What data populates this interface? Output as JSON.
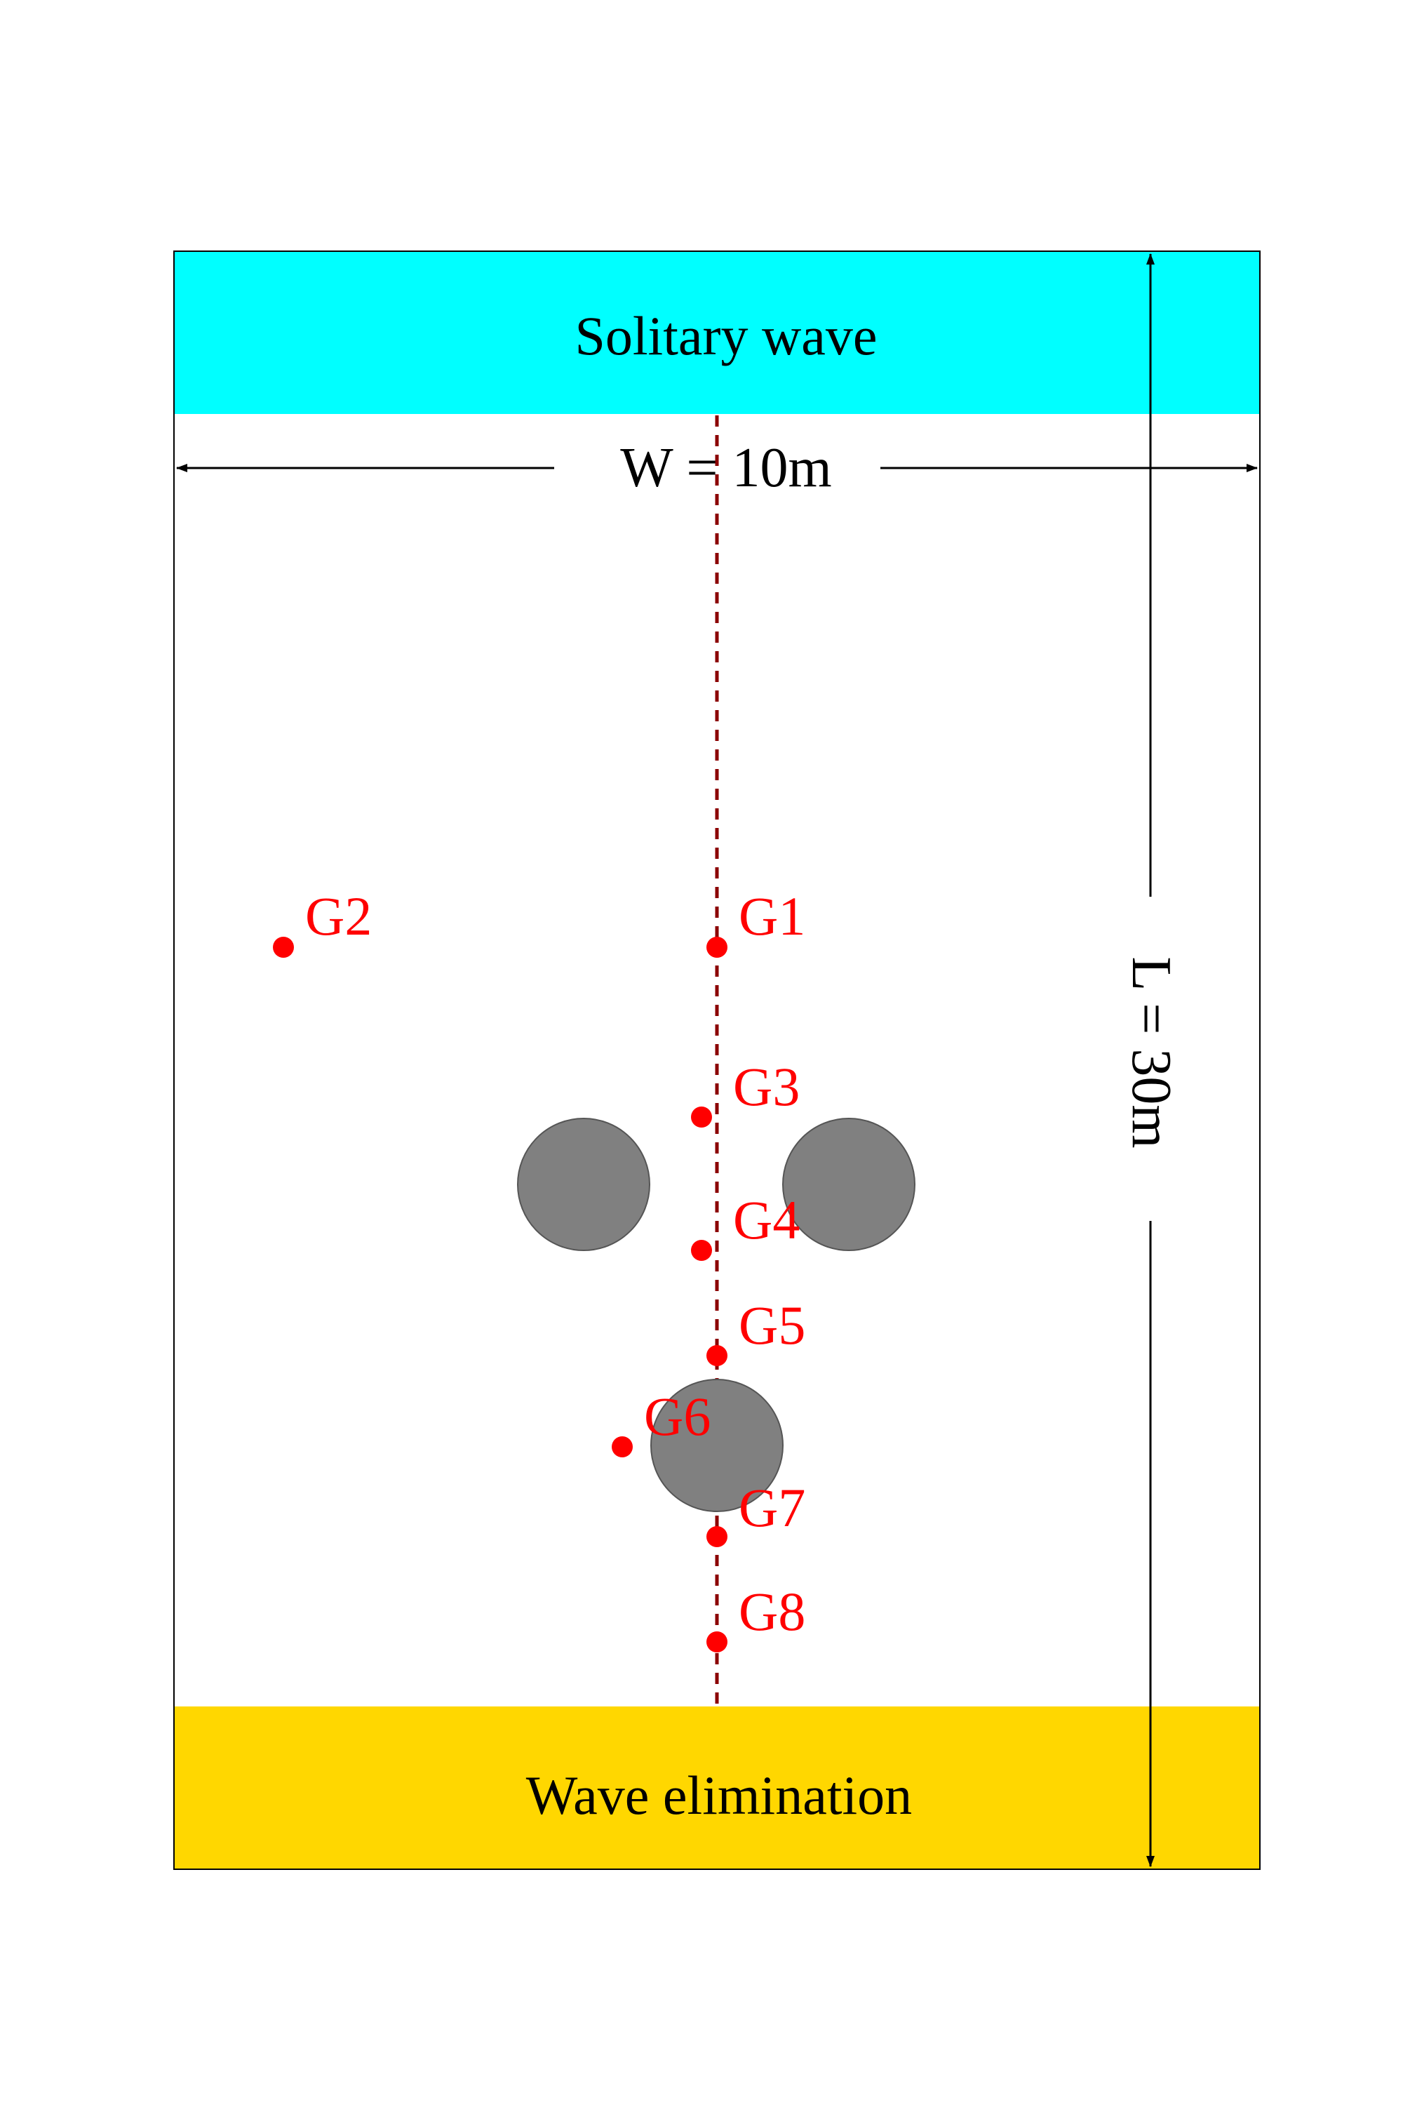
{
  "regions": {
    "top": {
      "label": "Solitary wave",
      "color": "#00FFFF"
    },
    "bottom": {
      "label": "Wave elimination",
      "color": "#FFD700"
    }
  },
  "dimensions": {
    "width_label": "W = 10m",
    "length_label": "L = 30m"
  },
  "gauges": [
    {
      "id": "G1",
      "label": "G1"
    },
    {
      "id": "G2",
      "label": "G2"
    },
    {
      "id": "G3",
      "label": "G3"
    },
    {
      "id": "G4",
      "label": "G4"
    },
    {
      "id": "G5",
      "label": "G5"
    },
    {
      "id": "G6",
      "label": "G6"
    },
    {
      "id": "G7",
      "label": "G7"
    },
    {
      "id": "G8",
      "label": "G8"
    }
  ],
  "colors": {
    "gauge": "#FF0000",
    "centerline": "#8B0000",
    "cylinder_fill": "#808080",
    "cylinder_stroke": "#555555",
    "outline": "#000000"
  }
}
